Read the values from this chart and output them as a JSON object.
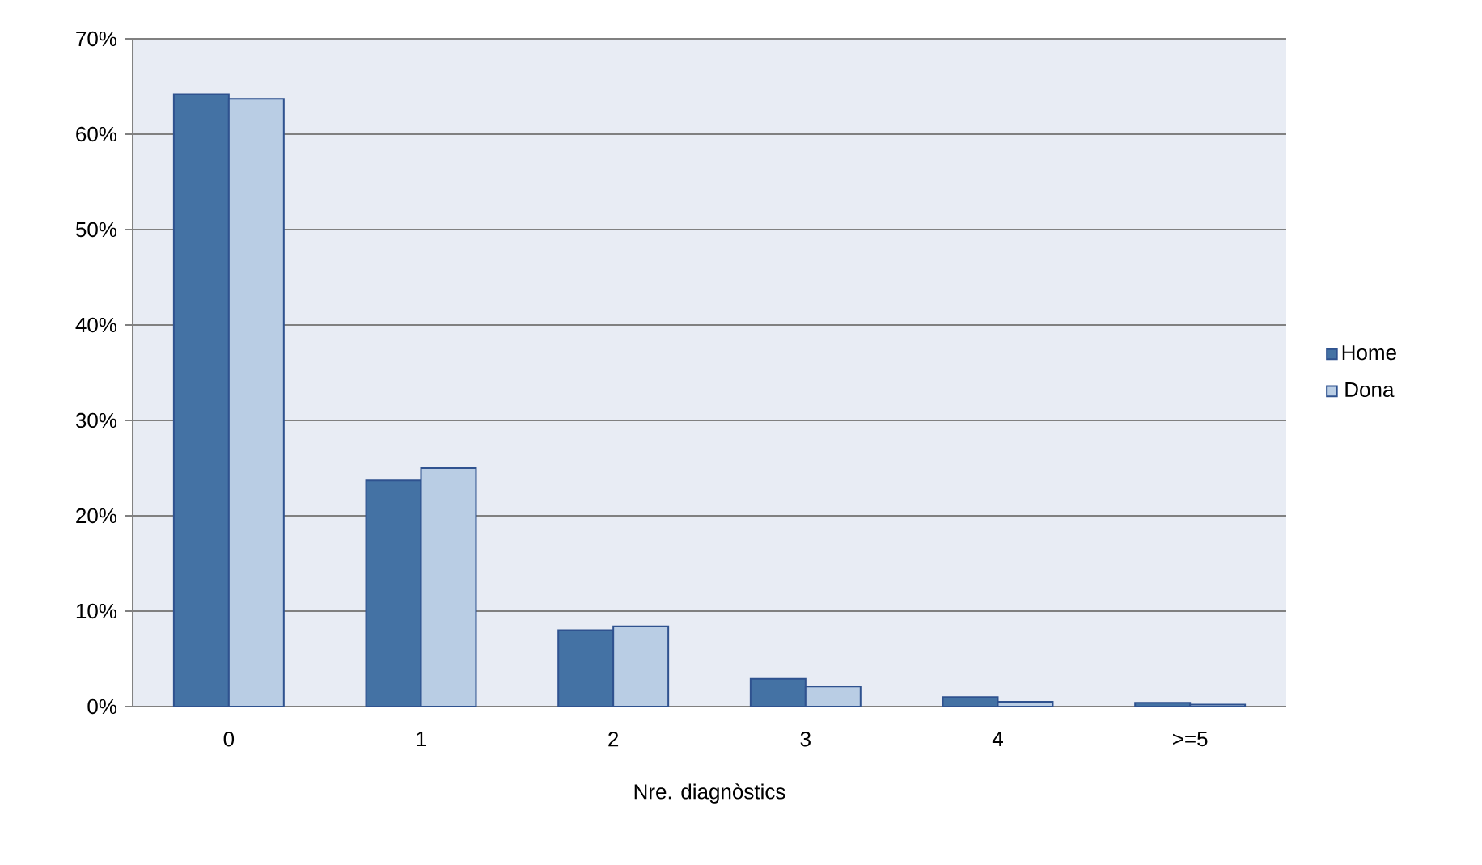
{
  "chart_data": {
    "type": "bar",
    "xlabel": "Nre. diagnòstics",
    "categories": [
      "0",
      "1",
      "2",
      "3",
      "4",
      ">=5"
    ],
    "series": [
      {
        "name": "Home",
        "color": "#4472a4",
        "values": [
          64.2,
          23.7,
          8.0,
          2.9,
          1.0,
          0.4
        ]
      },
      {
        "name": "Dona",
        "color": "#b9cde4",
        "values": [
          63.7,
          25.0,
          8.4,
          2.1,
          0.5,
          0.2
        ]
      }
    ],
    "ylim": [
      0,
      70
    ],
    "yticks": [
      {
        "value": 0,
        "label": "0%"
      },
      {
        "value": 10,
        "label": "10%"
      },
      {
        "value": 20,
        "label": "20%"
      },
      {
        "value": 30,
        "label": "30%"
      },
      {
        "value": 40,
        "label": "40%"
      },
      {
        "value": 50,
        "label": "50%"
      },
      {
        "value": 60,
        "label": "60%"
      },
      {
        "value": 70,
        "label": "70%"
      }
    ],
    "grid": "y",
    "legend": "right"
  }
}
